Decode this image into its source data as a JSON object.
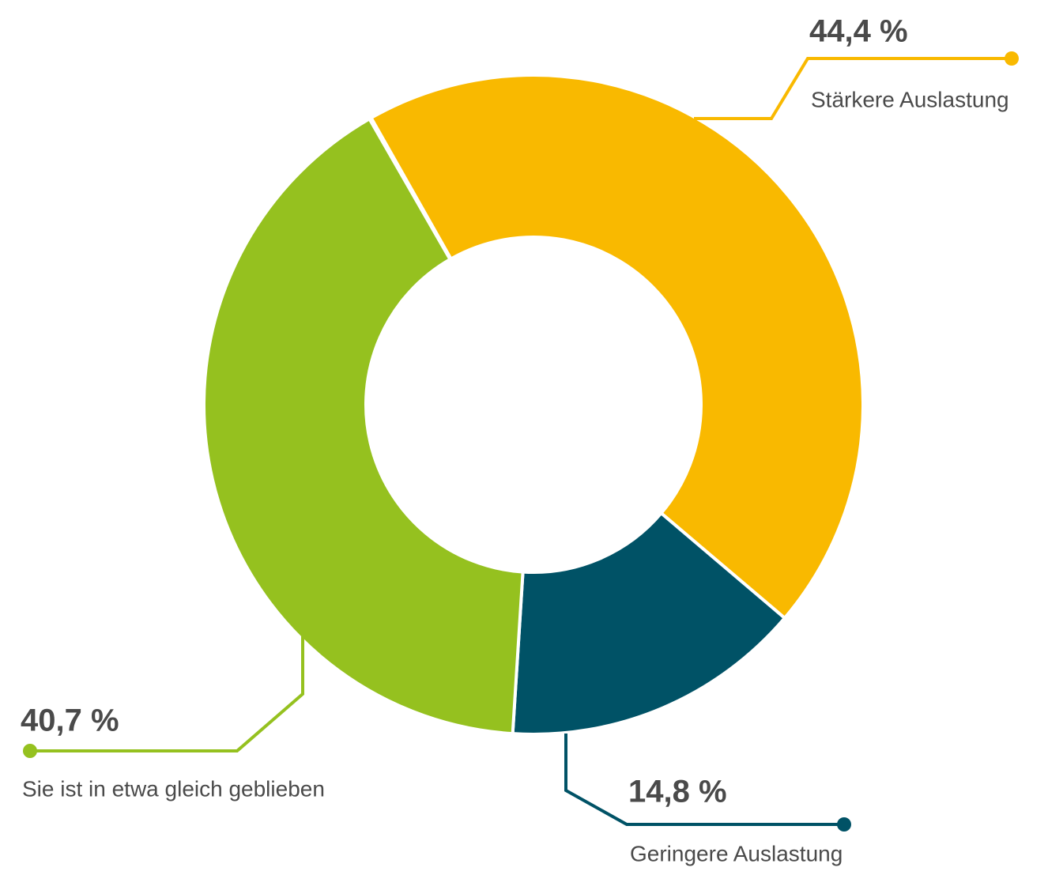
{
  "chart_data": {
    "type": "donut",
    "categories": [
      "Stärkere Auslastung",
      "Geringere Auslastung",
      "Sie ist in etwa gleich geblieben"
    ],
    "values": [
      44.4,
      14.8,
      40.7
    ],
    "value_labels": [
      "44,4 %",
      "14,8 %",
      "40,7 %"
    ],
    "colors": [
      "#f9b900",
      "#005266",
      "#95c11f"
    ]
  }
}
